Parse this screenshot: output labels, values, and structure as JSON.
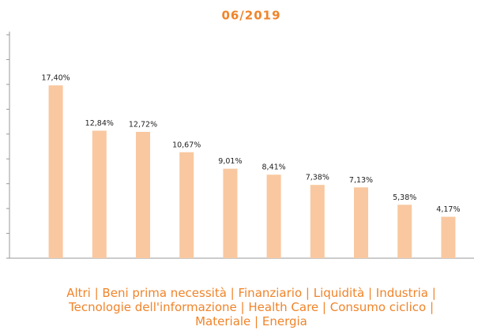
{
  "chart_data": {
    "type": "bar",
    "title": "06/2019",
    "categories": [
      null,
      null,
      null,
      null,
      null,
      null,
      null,
      null,
      null,
      null
    ],
    "values": [
      17.4,
      12.84,
      12.72,
      10.67,
      9.01,
      8.41,
      7.38,
      7.13,
      5.38,
      4.17
    ],
    "value_labels": [
      "17,40%",
      "12,84%",
      "12,72%",
      "10,67%",
      "9,01%",
      "8,41%",
      "7,38%",
      "7,13%",
      "5,38%",
      "4,17%"
    ],
    "color": "#f9c8a0",
    "ylim": [
      0,
      22.5
    ],
    "yticks": [
      0,
      2.5,
      5,
      7.5,
      10,
      12.5,
      15,
      17.5,
      20,
      22.5
    ],
    "grid": false,
    "caption": "Altri | Beni prima necessità | Finanziario | Liquidità | Industria | Tecnologie dell'informazione | Health Care | Consumo ciclico | Materiale | Energia"
  }
}
